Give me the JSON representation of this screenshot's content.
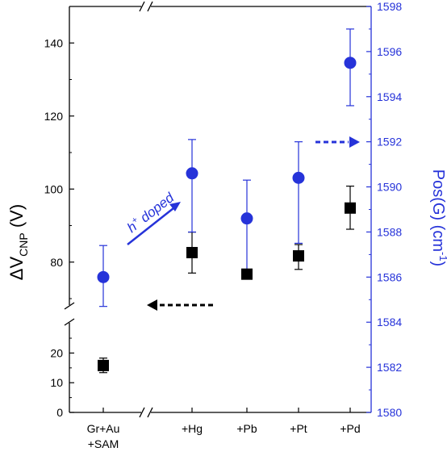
{
  "chart_data": {
    "type": "scatter",
    "categories": [
      "Gr+Au\n+SAM",
      "+Hg",
      "+Pb",
      "+Pt",
      "+Pd"
    ],
    "x_axis_break": true,
    "series": [
      {
        "axis": "left",
        "marker": "square",
        "color": "#000000",
        "values": [
          15.8,
          82.6,
          76.7,
          81.7,
          94.8
        ],
        "err_low": [
          13.4,
          77.0,
          75.8,
          78.0,
          89.0
        ],
        "err_high": [
          18.3,
          88.2,
          78.0,
          84.8,
          100.8
        ]
      },
      {
        "axis": "right",
        "marker": "circle",
        "color": "#2633d9",
        "values": [
          1586.0,
          1590.6,
          1588.6,
          1590.4,
          1595.5
        ],
        "err_low": [
          1584.7,
          1588.0,
          1586.3,
          1587.5,
          1593.6
        ],
        "err_high": [
          1587.4,
          1592.1,
          1590.3,
          1592.0,
          1597.0
        ]
      }
    ],
    "left_axis": {
      "title_main": "ΔV",
      "title_sub": "CNP",
      "title_unit": " (V)",
      "lower_range": [
        0,
        28
      ],
      "lower_ticks": [
        0,
        10,
        20
      ],
      "upper_range": [
        70,
        150
      ],
      "upper_ticks": [
        80,
        100,
        120,
        140
      ],
      "break": true
    },
    "right_axis": {
      "title": "Pos(G) (cm",
      "title_sup": "-1",
      "title_end": ")",
      "range": [
        1580,
        1598
      ],
      "ticks": [
        1580,
        1582,
        1584,
        1586,
        1588,
        1590,
        1592,
        1594,
        1596,
        1598
      ],
      "color": "#2633d9"
    },
    "annotations": {
      "doping_label_main": "h",
      "doping_label_sup": "+",
      "doping_label_rest": " doped"
    },
    "colors": {
      "left_series": "#000000",
      "right_series": "#2633d9"
    }
  }
}
